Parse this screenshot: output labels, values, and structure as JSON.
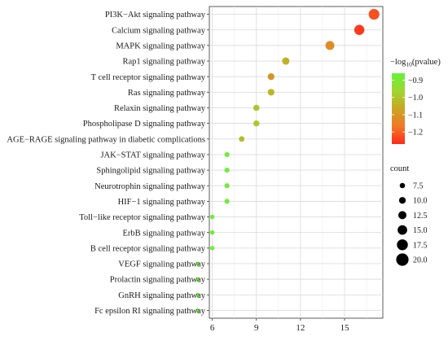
{
  "chart_data": {
    "type": "scatter",
    "categories": [
      "PI3K−Akt signaling pathway",
      "Calcium signaling pathway",
      "MAPK signaling pathway",
      "Rap1 signaling pathway",
      "T cell receptor signaling pathway",
      "Ras signaling pathway",
      "Relaxin signaling pathway",
      "Phospholipase D signaling pathway",
      "AGE−RAGE signaling pathway in diabetic complications",
      "JAK−STAT signaling pathway",
      "Sphingolipid signaling pathway",
      "Neurotrophin signaling pathway",
      "HIF−1 signaling pathway",
      "Toll−like receptor signaling pathway",
      "ErbB signaling pathway",
      "B cell receptor signaling pathway",
      "VEGF signaling pathway",
      "Prolactin signaling pathway",
      "GnRH signaling pathway",
      "Fc epsilon RI signaling pathway"
    ],
    "x": [
      17,
      16,
      14,
      11,
      10,
      10,
      9,
      9,
      8,
      7,
      7,
      7,
      7,
      6,
      6,
      6,
      5,
      5,
      5,
      5
    ],
    "count": [
      17,
      16,
      14,
      11,
      10,
      10,
      9,
      9,
      8,
      7,
      7,
      7,
      7,
      6,
      6,
      6,
      5,
      5,
      5,
      5
    ],
    "neg_log10_pvalue": [
      -1.22,
      -1.25,
      -1.12,
      -1.04,
      -1.1,
      -1.03,
      -1.0,
      -0.99,
      -1.02,
      -0.88,
      -0.88,
      -0.88,
      -0.88,
      -0.88,
      -0.88,
      -0.88,
      -0.87,
      -0.87,
      -0.87,
      -0.87
    ],
    "xlim": [
      5.8,
      17.6
    ],
    "x_ticks": [
      6,
      9,
      12,
      15
    ],
    "grid": true,
    "color_legend": {
      "title_prefix": "−log",
      "title_sub": "10",
      "title_suffix": "(pvalue)",
      "ticks": [
        "−0.9",
        "−1.0",
        "−1.1",
        "−1.2"
      ],
      "tick_values": [
        -0.9,
        -1.0,
        -1.1,
        -1.2
      ],
      "range": [
        -1.27,
        -0.86
      ],
      "colors": [
        "#ff2a1a",
        "#f07828",
        "#c9a622",
        "#9fd630",
        "#66f23c"
      ]
    },
    "size_legend": {
      "title": "count",
      "ticks": [
        "7.5",
        "10.0",
        "12.5",
        "15.0",
        "17.5",
        "20.0"
      ],
      "tick_values": [
        7.5,
        10.0,
        12.5,
        15.0,
        17.5,
        20.0
      ]
    },
    "size_range": [
      5,
      20
    ],
    "legend_placement": "right"
  }
}
